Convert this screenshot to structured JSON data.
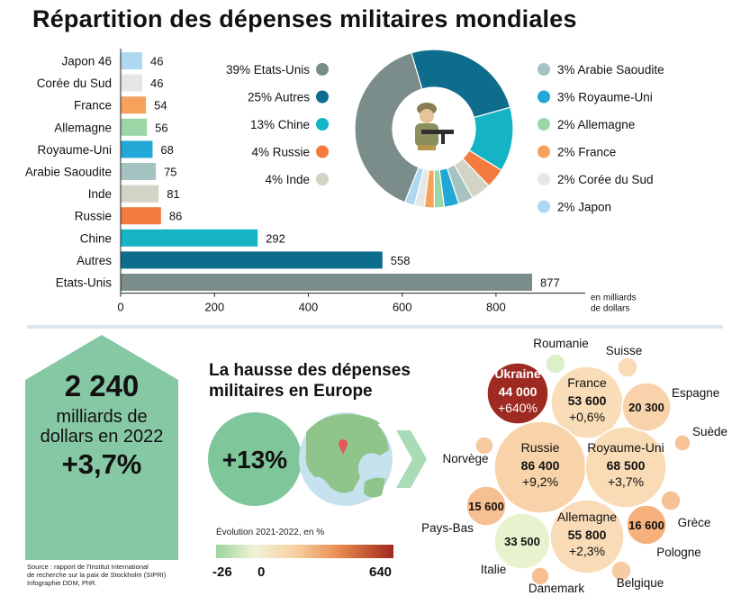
{
  "title": "Répartition des dépenses militaires mondiales",
  "chart_data": [
    {
      "type": "bar",
      "orientation": "horizontal",
      "categories": [
        "Japon 46",
        "Corée du Sud",
        "France",
        "Allemagne",
        "Royaume-Uni",
        "Arabie Saoudite",
        "Inde",
        "Russie",
        "Chine",
        "Autres",
        "Etats-Unis"
      ],
      "values": [
        46,
        46,
        54,
        56,
        68,
        75,
        81,
        86,
        292,
        558,
        877
      ],
      "colors": [
        "#aed8f2",
        "#e6e6e6",
        "#f7a25c",
        "#9bd6a6",
        "#21a8d7",
        "#a5c3c1",
        "#d3d3c6",
        "#f47a3e",
        "#14b4c4",
        "#0e6c8c",
        "#7b8d8a"
      ],
      "xlabel": "en milliards de dollars",
      "xlim": [
        0,
        900
      ],
      "xticks": [
        0,
        200,
        400,
        600,
        800
      ],
      "grid": false
    },
    {
      "type": "pie",
      "donut": true,
      "slices": [
        {
          "label": "39% Etats-Unis",
          "value": 39,
          "color": "#7b8d8a"
        },
        {
          "label": "25% Autres",
          "value": 25,
          "color": "#0e6c8c"
        },
        {
          "label": "13% Chine",
          "value": 13,
          "color": "#14b4c4"
        },
        {
          "label": "4% Russie",
          "value": 4,
          "color": "#f47a3e"
        },
        {
          "label": "4% Inde",
          "value": 4,
          "color": "#d3d3c6"
        },
        {
          "label": "3% Arabie Saoudite",
          "value": 3,
          "color": "#a5c3c1"
        },
        {
          "label": "3% Royaume-Uni",
          "value": 3,
          "color": "#21a8d7"
        },
        {
          "label": "2% Allemagne",
          "value": 2,
          "color": "#9bd6a6"
        },
        {
          "label": "2% France",
          "value": 2,
          "color": "#f7a25c"
        },
        {
          "label": "2% Corée du Sud",
          "value": 2,
          "color": "#e6e6e6"
        },
        {
          "label": "2% Japon",
          "value": 2,
          "color": "#aed8f2"
        }
      ],
      "legend_left": [
        "39% Etats-Unis",
        "25% Autres",
        "13% Chine",
        "4% Russie",
        "4% Inde"
      ],
      "legend_right": [
        "3% Arabie Saoudite",
        "3% Royaume-Uni",
        "2% Allemagne",
        "2% France",
        "2% Corée du Sud",
        "2% Japon"
      ],
      "center_icon": "soldier-icon"
    },
    {
      "type": "bubble",
      "title": "La hausse des dépenses militaires en Europe",
      "headline": "+13%",
      "color_scale": {
        "label": "Évolution 2021-2022, en %",
        "min": "-26",
        "zero": "0",
        "max": "640"
      },
      "bubbles": [
        {
          "country": "Ukraine",
          "value": "44 000",
          "change": "+640%",
          "color": "#9e2a22"
        },
        {
          "country": "France",
          "value": "53 600",
          "change": "+0,6%",
          "color": "#f9ddb8"
        },
        {
          "country": "Russie",
          "value": "86 400",
          "change": "+9,2%",
          "color": "#f8d2a8"
        },
        {
          "country": "Royaume-Uni",
          "value": "68 500",
          "change": "+3,7%",
          "color": "#f9dcb5"
        },
        {
          "country": "Allemagne",
          "value": "55 800",
          "change": "+2,3%",
          "color": "#f9dcb7"
        },
        {
          "country": "Espagne",
          "value": "20 300",
          "change": "",
          "color": "#f7d2aa"
        },
        {
          "country": "Pays-Bas",
          "value": "15 600",
          "change": "",
          "color": "#f6c092"
        },
        {
          "country": "Italie",
          "value": "33 500",
          "change": "",
          "color": "#e8f2cf"
        },
        {
          "country": "Pologne",
          "value": "16 600",
          "change": "",
          "color": "#f6b07c"
        },
        {
          "country": "Roumanie",
          "value": "",
          "change": "",
          "color": "#dcefc9"
        },
        {
          "country": "Suisse",
          "value": "",
          "change": "",
          "color": "#f9dcb5"
        },
        {
          "country": "Suède",
          "value": "",
          "change": "",
          "color": "#f6c397"
        },
        {
          "country": "Norvège",
          "value": "",
          "change": "",
          "color": "#f7c9a0"
        },
        {
          "country": "Grèce",
          "value": "",
          "change": "",
          "color": "#f6c397"
        },
        {
          "country": "Belgique",
          "value": "",
          "change": "",
          "color": "#f7cba3"
        },
        {
          "country": "Danemark",
          "value": "",
          "change": "",
          "color": "#f6bf93"
        }
      ]
    }
  ],
  "total": {
    "amount": "2 240",
    "unit_line1": "milliards de",
    "unit_line2": "dollars en 2022",
    "growth": "+3,7%"
  },
  "source": {
    "line1": "Source : rapport de l'Institut International",
    "line2": "de recherche sur la paix de Stockholm (SIPRI)",
    "line3": "Infographie DDM, PhR."
  },
  "europe": {
    "title_line1": "La hausse des dépenses",
    "title_line2": "militaires en Europe"
  }
}
